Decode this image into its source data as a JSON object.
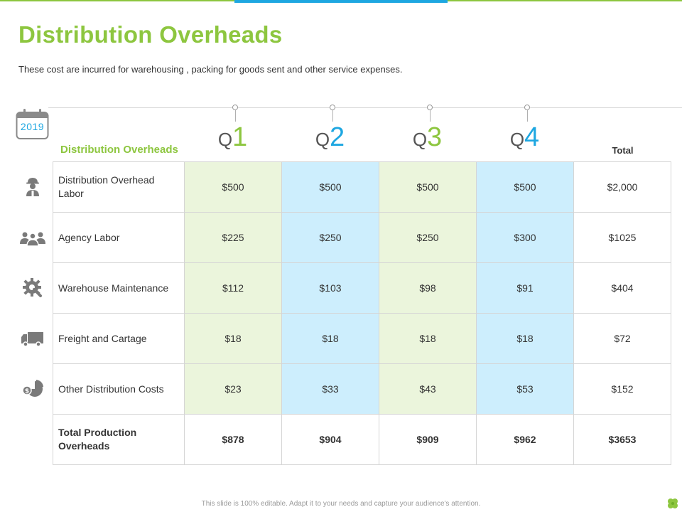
{
  "title": "Distribution Overheads",
  "subtitle": "These cost are incurred for warehousing , packing for goods sent and other service expenses.",
  "calendar": {
    "year": "2019"
  },
  "row_header": "Distribution Overheads",
  "quarters": [
    {
      "prefix": "Q",
      "number": "1",
      "color": "#8dc63f"
    },
    {
      "prefix": "Q",
      "number": "2",
      "color": "#1ea7e1"
    },
    {
      "prefix": "Q",
      "number": "3",
      "color": "#8dc63f"
    },
    {
      "prefix": "Q",
      "number": "4",
      "color": "#1ea7e1"
    }
  ],
  "total_header": "Total",
  "rows": [
    {
      "icon": "worker-icon",
      "label": "Distribution Overhead Labor",
      "values": [
        "$500",
        "$500",
        "$500",
        "$500"
      ],
      "total": "$2,000"
    },
    {
      "icon": "team-icon",
      "label": "Agency Labor",
      "values": [
        "$225",
        "$250",
        "$250",
        "$300"
      ],
      "total": "$1025"
    },
    {
      "icon": "gear-wrench-icon",
      "label": "Warehouse Maintenance",
      "values": [
        "$112",
        "$103",
        "$98",
        "$91"
      ],
      "total": "$404"
    },
    {
      "icon": "truck-icon",
      "label": "Freight and Cartage",
      "values": [
        "$18",
        "$18",
        "$18",
        "$18"
      ],
      "total": "$72"
    },
    {
      "icon": "money-pie-icon",
      "label": "Other Distribution Costs",
      "values": [
        "$23",
        "$33",
        "$43",
        "$53"
      ],
      "total": "$152"
    }
  ],
  "total_row": {
    "label": "Total Production Overheads",
    "values": [
      "$878",
      "$904",
      "$909",
      "$962"
    ],
    "total": "$3653"
  },
  "footer": "This slide is 100% editable. Adapt it to your needs and capture your audience's attention.",
  "colors": {
    "accent_green": "#8dc63f",
    "accent_blue": "#1ea7e1",
    "cell_green": "#ebf5dc",
    "cell_blue": "#cdeefd"
  }
}
